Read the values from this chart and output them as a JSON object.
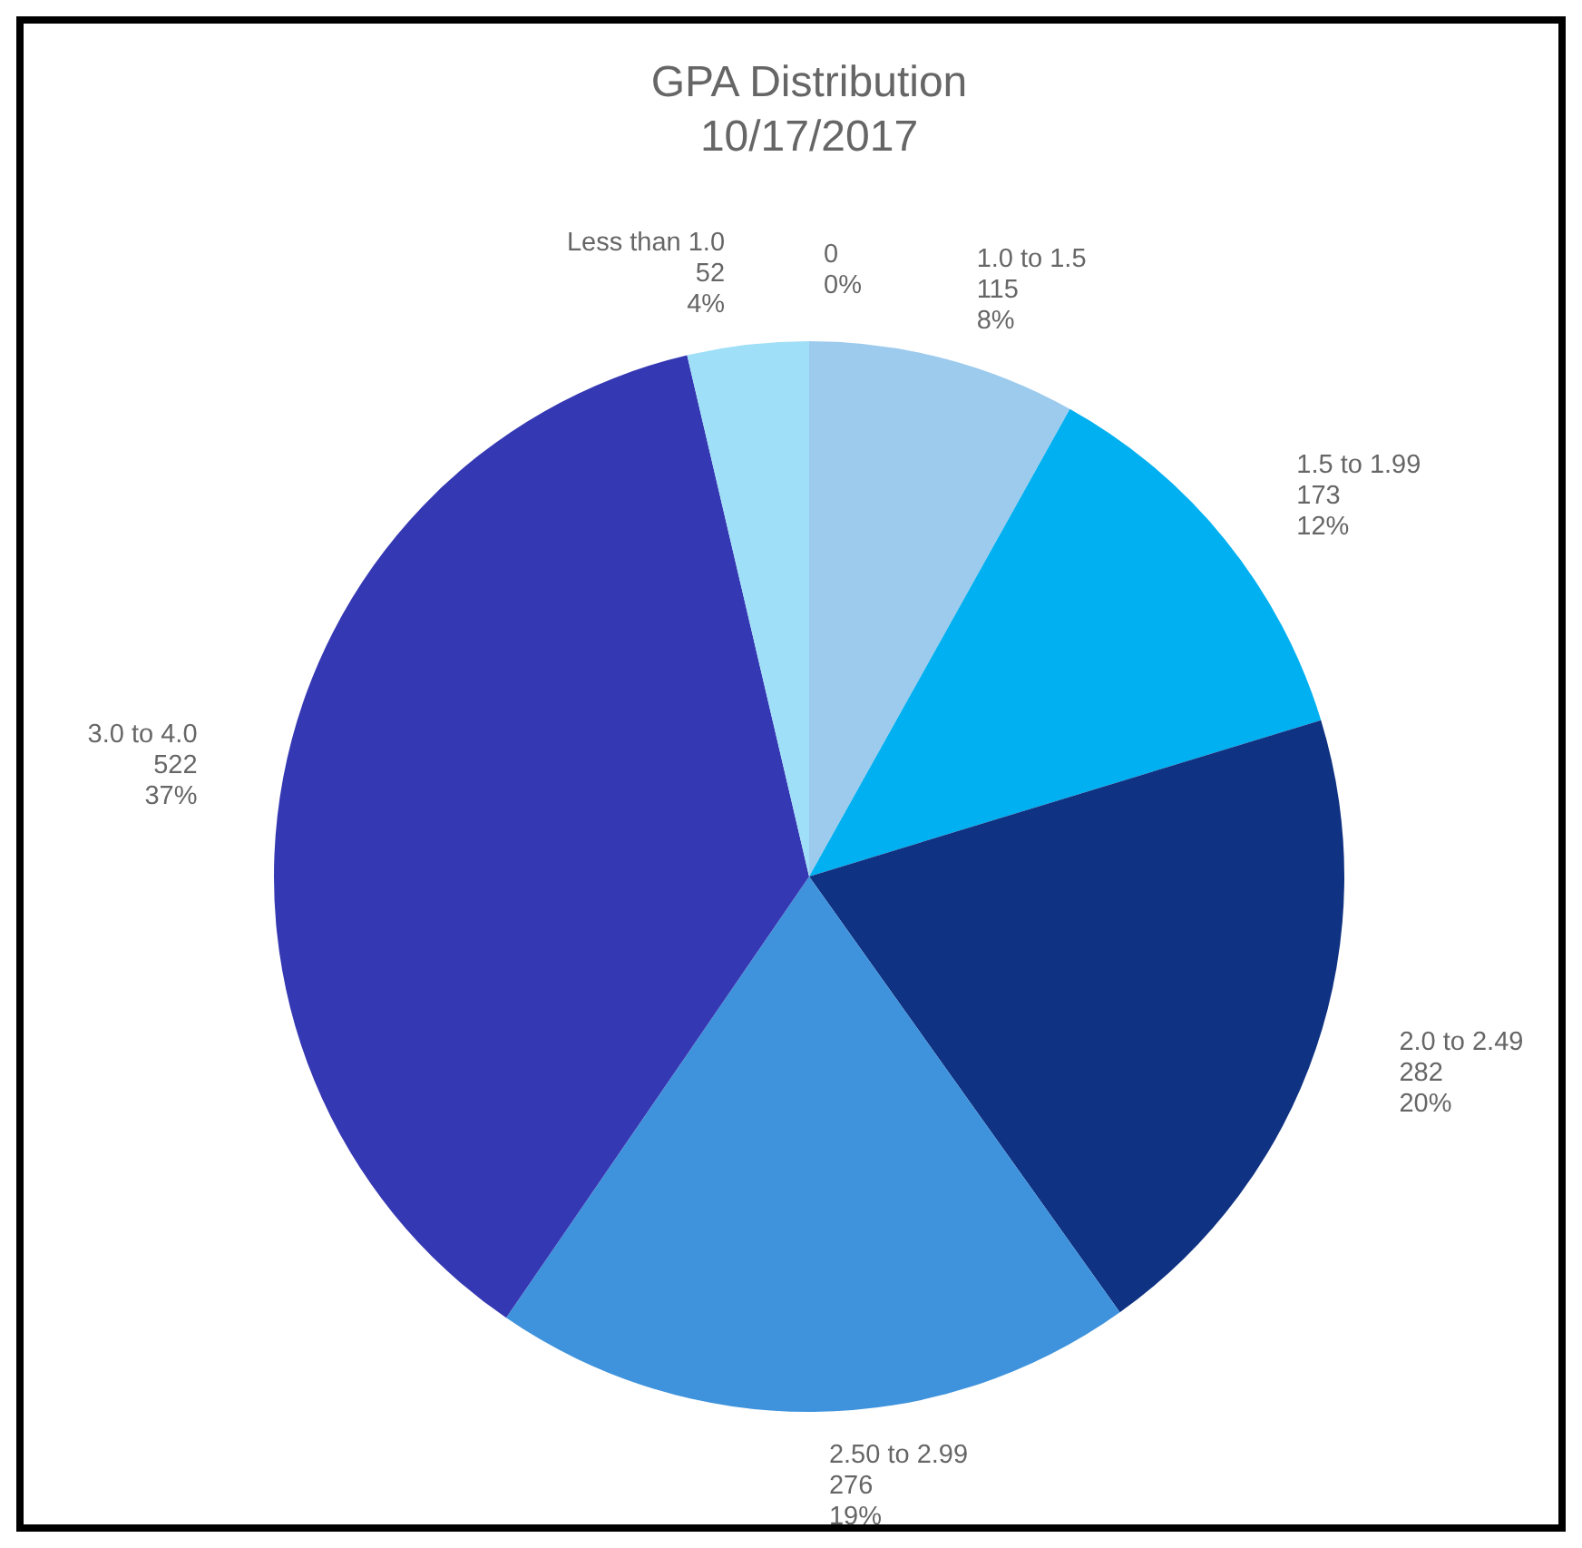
{
  "chart_data": {
    "type": "pie",
    "title": "GPA Distribution\n10/17/2017",
    "categories": [
      null,
      "1.0 to 1.5",
      "1.5 to 1.99",
      "2.0 to 2.49",
      "2.50 to 2.99",
      "3.0 to 4.0",
      "Less than 1.0"
    ],
    "values": [
      0,
      115,
      173,
      282,
      276,
      522,
      52
    ],
    "value_labels": [
      "0\n0%",
      "115\n8%",
      "173\n12%",
      "282\n20%",
      "276\n19%",
      "522\n37%",
      "52\n4%"
    ],
    "colors": [
      "#5b9bd5",
      "#9dcbee",
      "#00b0f0",
      "#0f3282",
      "#3f93dc",
      "#3538b3",
      "#9fdff7"
    ]
  }
}
